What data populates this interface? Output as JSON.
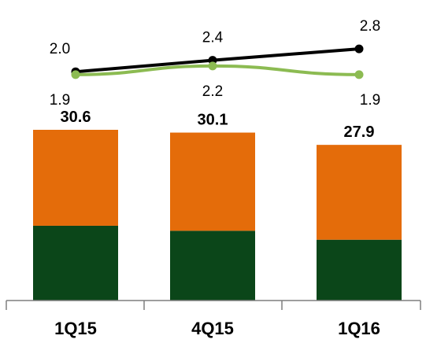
{
  "chart_data": [
    {
      "type": "bar",
      "stacked": true,
      "categories": [
        "1Q15",
        "4Q15",
        "1Q16"
      ],
      "series": [
        {
          "values": [
            13.4,
            12.5,
            10.9
          ],
          "color": "#0b4619"
        },
        {
          "values": [
            17.2,
            17.6,
            17.0
          ],
          "color": "#e46c0a"
        }
      ],
      "totals": [
        30.6,
        30.1,
        27.9
      ],
      "total_labels": [
        "30.6",
        "30.1",
        "27.9"
      ],
      "ylim": [
        0,
        35
      ],
      "grid": false
    },
    {
      "type": "line",
      "categories": [
        "1Q15",
        "4Q15",
        "1Q16"
      ],
      "series": [
        {
          "values": [
            2.0,
            2.4,
            2.8
          ],
          "labels": [
            "2.0",
            "2.4",
            "2.8"
          ],
          "color": "#000000",
          "label_position": "above"
        },
        {
          "values": [
            1.9,
            2.2,
            1.9
          ],
          "labels": [
            "1.9",
            "2.2",
            "1.9"
          ],
          "color": "#8cbb52",
          "label_position": "below"
        }
      ],
      "grid": false
    }
  ]
}
